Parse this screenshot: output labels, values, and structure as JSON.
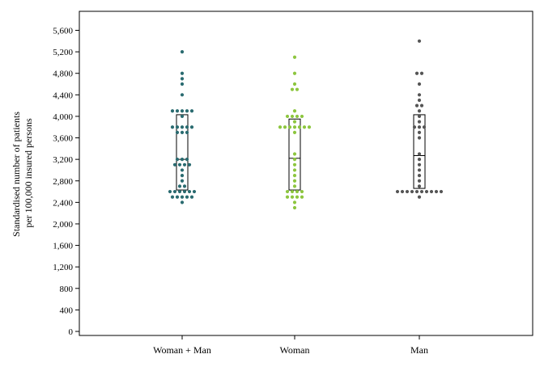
{
  "chart_data": {
    "type": "scatter",
    "subtype": "dot-strip-with-boxplot",
    "ylabel_line1": "Standardised number of patients",
    "ylabel_line2": "per 100,000 insured persons",
    "ylim": [
      0,
      5800
    ],
    "yticks": [
      0,
      400,
      800,
      1200,
      1600,
      2000,
      2400,
      2800,
      3200,
      3600,
      4000,
      4400,
      4800,
      5200,
      5600
    ],
    "ytick_labels": [
      "0",
      "400",
      "800",
      "1,200",
      "1,600",
      "2,000",
      "2,400",
      "2,800",
      "3,200",
      "3,600",
      "4,000",
      "4,400",
      "4,800",
      "5,200",
      "5,600"
    ],
    "grid": false,
    "categories": [
      "Woman + Man",
      "Woman",
      "Man"
    ],
    "series": [
      {
        "color": "#2a6b70",
        "box": {
          "q1": 2630,
          "median": 3200,
          "q3": 4030
        },
        "values": [
          2400,
          2500,
          2500,
          2500,
          2500,
          2500,
          2600,
          2600,
          2600,
          2600,
          2600,
          2600,
          2700,
          2700,
          2800,
          2900,
          3000,
          3100,
          3100,
          3100,
          3100,
          3200,
          3200,
          3200,
          3700,
          3700,
          3700,
          3800,
          3800,
          3800,
          3800,
          3800,
          4000,
          4100,
          4100,
          4100,
          4100,
          4100,
          4400,
          4600,
          4700,
          4800,
          5200
        ]
      },
      {
        "color": "#8dc63f",
        "box": {
          "q1": 2630,
          "median": 3220,
          "q3": 3950
        },
        "values": [
          2300,
          2400,
          2500,
          2500,
          2500,
          2500,
          2600,
          2600,
          2600,
          2600,
          2700,
          2800,
          2900,
          3000,
          3100,
          3200,
          3300,
          3700,
          3800,
          3800,
          3800,
          3800,
          3800,
          3800,
          3800,
          3900,
          4000,
          4000,
          4000,
          4000,
          4100,
          4500,
          4500,
          4600,
          4800,
          5100
        ]
      },
      {
        "color": "#555555",
        "box": {
          "q1": 2660,
          "median": 3270,
          "q3": 4030
        },
        "values": [
          2500,
          2600,
          2600,
          2600,
          2600,
          2600,
          2600,
          2600,
          2600,
          2600,
          2600,
          2700,
          2800,
          2900,
          3000,
          3100,
          3200,
          3300,
          3600,
          3700,
          3800,
          3800,
          3800,
          3900,
          4000,
          4100,
          4200,
          4200,
          4300,
          4400,
          4600,
          4800,
          4800,
          5400
        ]
      }
    ]
  }
}
